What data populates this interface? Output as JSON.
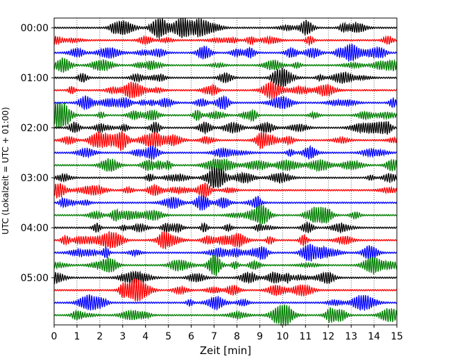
{
  "chart_data": {
    "type": "line",
    "subtype": "helicorder-seismogram",
    "xlabel": "Zeit  [min]",
    "ylabel": "UTC (Lokalzeit = UTC + 01:00)",
    "xlim": [
      0,
      15
    ],
    "xticks": [
      0,
      1,
      2,
      3,
      4,
      5,
      6,
      7,
      8,
      9,
      10,
      11,
      12,
      13,
      14,
      15
    ],
    "xtick_labels": [
      "0",
      "1",
      "2",
      "3",
      "4",
      "5",
      "6",
      "7",
      "8",
      "9",
      "10",
      "11",
      "12",
      "13",
      "14",
      "15"
    ],
    "ytick_labels": [
      "00:00",
      "01:00",
      "02:00",
      "03:00",
      "04:00",
      "05:00"
    ],
    "ytick_rows": [
      0,
      4,
      8,
      12,
      16,
      20
    ],
    "grid": "vertical dotted lines at each minute",
    "line_interval_minutes": 15,
    "trace_count": 24,
    "trace_colors": [
      "#000000",
      "#ff0000",
      "#0000ff",
      "#007f00"
    ],
    "series": [
      {
        "start": "00:00",
        "color": "#000000"
      },
      {
        "start": "00:15",
        "color": "#ff0000"
      },
      {
        "start": "00:30",
        "color": "#0000ff"
      },
      {
        "start": "00:45",
        "color": "#007f00"
      },
      {
        "start": "01:00",
        "color": "#000000"
      },
      {
        "start": "01:15",
        "color": "#ff0000"
      },
      {
        "start": "01:30",
        "color": "#0000ff"
      },
      {
        "start": "01:45",
        "color": "#007f00"
      },
      {
        "start": "02:00",
        "color": "#000000"
      },
      {
        "start": "02:15",
        "color": "#ff0000"
      },
      {
        "start": "02:30",
        "color": "#0000ff"
      },
      {
        "start": "02:45",
        "color": "#007f00"
      },
      {
        "start": "03:00",
        "color": "#000000"
      },
      {
        "start": "03:15",
        "color": "#ff0000"
      },
      {
        "start": "03:30",
        "color": "#0000ff"
      },
      {
        "start": "03:45",
        "color": "#007f00"
      },
      {
        "start": "04:00",
        "color": "#000000"
      },
      {
        "start": "04:15",
        "color": "#ff0000"
      },
      {
        "start": "04:30",
        "color": "#0000ff"
      },
      {
        "start": "04:45",
        "color": "#007f00"
      },
      {
        "start": "05:00",
        "color": "#000000"
      },
      {
        "start": "05:15",
        "color": "#ff0000"
      },
      {
        "start": "05:30",
        "color": "#0000ff"
      },
      {
        "start": "05:45",
        "color": "#007f00"
      }
    ]
  }
}
